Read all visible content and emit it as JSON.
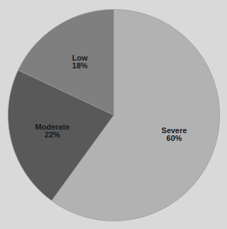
{
  "chart_data": {
    "type": "pie",
    "categories": [
      "Low",
      "Moderate",
      "Severe"
    ],
    "values": [
      18,
      22,
      60
    ],
    "value_labels": [
      "18%",
      "22%",
      "60%"
    ],
    "colors": [
      "#7f7f7f",
      "#595959",
      "#b2b2b2"
    ],
    "data_labels": true
  }
}
